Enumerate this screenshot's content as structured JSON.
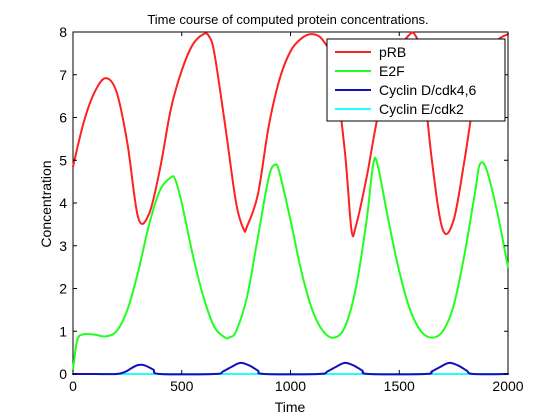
{
  "chart_data": {
    "type": "line",
    "title": "Time course of computed protein concentrations.",
    "xlabel": "Time",
    "ylabel": "Concentration",
    "xlim": [
      0,
      2000
    ],
    "ylim": [
      0,
      8
    ],
    "grid": false,
    "legend_position": "top-right",
    "x_ticks": [
      "0",
      "500",
      "1000",
      "1500",
      "2000"
    ],
    "y_ticks": [
      "0",
      "1",
      "2",
      "3",
      "4",
      "5",
      "6",
      "7",
      "8"
    ],
    "series": [
      {
        "name": "pRB",
        "color": "#ff2020",
        "x": [
          0,
          50,
          100,
          150,
          200,
          250,
          300,
          350,
          400,
          450,
          500,
          550,
          600,
          625,
          650,
          700,
          750,
          785,
          800,
          850,
          900,
          950,
          1000,
          1050,
          1100,
          1150,
          1200,
          1250,
          1280,
          1300,
          1350,
          1400,
          1450,
          1500,
          1540,
          1570,
          1600,
          1650,
          1700,
          1750,
          1800,
          1850,
          1900,
          1950,
          2000
        ],
        "y": [
          4.85,
          5.9,
          6.6,
          6.92,
          6.6,
          5.4,
          3.65,
          3.75,
          4.8,
          6.2,
          7.1,
          7.7,
          7.95,
          7.9,
          7.5,
          5.8,
          4.0,
          3.38,
          3.45,
          4.2,
          5.8,
          6.9,
          7.55,
          7.85,
          7.95,
          7.8,
          7.2,
          5.2,
          3.38,
          3.45,
          4.6,
          6.0,
          7.0,
          7.6,
          7.9,
          7.95,
          7.4,
          5.0,
          3.38,
          3.6,
          5.0,
          6.6,
          7.4,
          7.8,
          7.95
        ]
      },
      {
        "name": "E2F",
        "color": "#20ff20",
        "x": [
          0,
          20,
          50,
          100,
          150,
          200,
          250,
          300,
          350,
          400,
          450,
          470,
          500,
          550,
          600,
          650,
          700,
          720,
          750,
          800,
          850,
          900,
          930,
          950,
          1000,
          1050,
          1100,
          1150,
          1200,
          1250,
          1300,
          1350,
          1380,
          1400,
          1450,
          1500,
          1550,
          1600,
          1650,
          1700,
          1750,
          1800,
          1850,
          1870,
          1900,
          1950,
          2000
        ],
        "y": [
          0.1,
          0.8,
          0.93,
          0.92,
          0.88,
          1.0,
          1.5,
          2.4,
          3.5,
          4.3,
          4.6,
          4.55,
          4.0,
          2.8,
          1.8,
          1.1,
          0.85,
          0.86,
          1.0,
          1.8,
          3.2,
          4.6,
          4.9,
          4.7,
          3.6,
          2.4,
          1.5,
          1.0,
          0.85,
          1.1,
          2.0,
          3.6,
          4.9,
          4.9,
          3.6,
          2.4,
          1.5,
          1.0,
          0.85,
          1.0,
          1.6,
          2.8,
          4.3,
          4.9,
          4.8,
          3.8,
          2.5
        ]
      },
      {
        "name": "Cyclin D/cdk4,6",
        "color": "#1010c0",
        "x": [
          0,
          100,
          200,
          240,
          270,
          300,
          330,
          370,
          400,
          650,
          690,
          730,
          770,
          810,
          850,
          880,
          1130,
          1170,
          1210,
          1250,
          1290,
          1330,
          1360,
          1620,
          1650,
          1690,
          1730,
          1770,
          1810,
          1840,
          2000
        ],
        "y": [
          0.0,
          0.0,
          0.0,
          0.05,
          0.14,
          0.21,
          0.2,
          0.1,
          0.0,
          0.0,
          0.06,
          0.17,
          0.26,
          0.2,
          0.08,
          0.0,
          0.0,
          0.06,
          0.17,
          0.26,
          0.2,
          0.08,
          0.0,
          0.0,
          0.06,
          0.17,
          0.26,
          0.2,
          0.08,
          0.0,
          0.0
        ]
      },
      {
        "name": "Cyclin E/cdk2",
        "color": "#20ffff",
        "x": [
          0,
          2000
        ],
        "y": [
          0.0,
          0.0
        ]
      }
    ]
  }
}
